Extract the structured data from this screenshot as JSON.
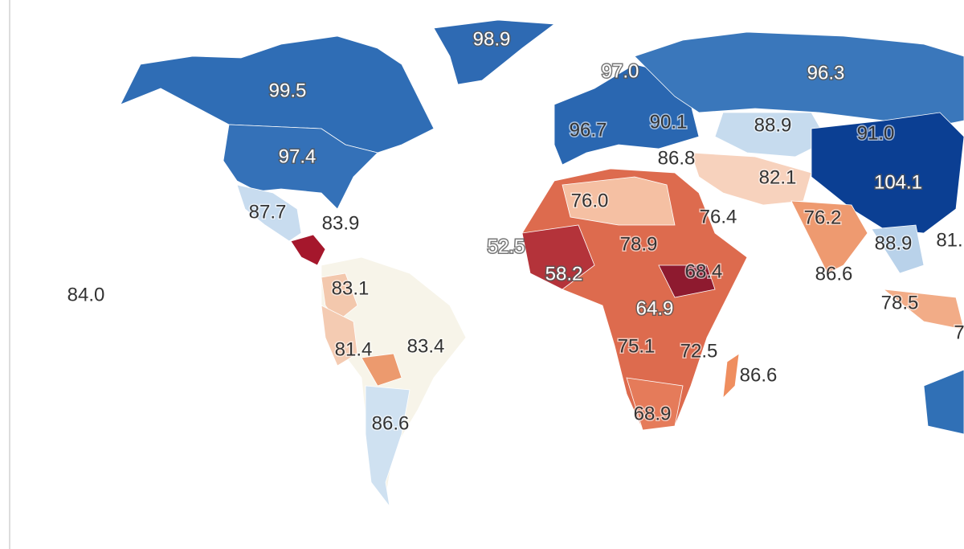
{
  "labels": [
    "98.9",
    "99.5",
    "97.0",
    "96.3",
    "96.7",
    "90.1",
    "88.9",
    "91.0",
    "97.4",
    "86.8",
    "82.1",
    "104.1",
    "87.7",
    "83.9",
    "76.0",
    "76.4",
    "76.2",
    "52.5",
    "78.9",
    "88.9",
    "81.",
    "58.2",
    "68.4",
    "86.6",
    "84.0",
    "83.1",
    "64.9",
    "78.5",
    "83.4",
    "81.4",
    "75.1",
    "72.5",
    "86.6",
    "7",
    "68.9",
    "86.6"
  ]
}
